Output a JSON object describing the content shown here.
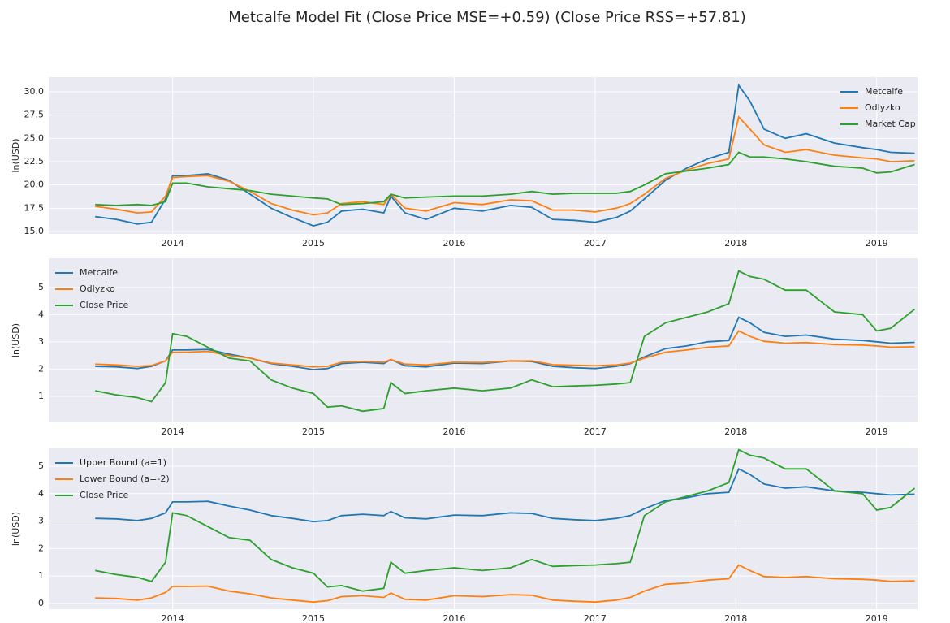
{
  "title": "Metcalfe Model Fit (Close Price MSE=+0.59) (Close Price RSS=+57.81)",
  "chart_data": [
    {
      "type": "line",
      "ylabel": "ln(USD)",
      "grid": true,
      "legend": "upper right",
      "xlim": [
        2013.12,
        2019.29
      ],
      "xticks": [
        2014,
        2015,
        2016,
        2017,
        2018,
        2019
      ],
      "ylim": [
        14.74,
        31.57
      ],
      "yticks": [
        {
          "value": 15,
          "label": "15.0"
        },
        17.5,
        {
          "value": 20,
          "label": "20.0"
        },
        22.5,
        {
          "value": 25,
          "label": "25.0"
        },
        27.5,
        {
          "value": 30,
          "label": "30.0"
        }
      ],
      "x": [
        2013.45,
        2013.6,
        2013.75,
        2013.85,
        2013.95,
        2014.0,
        2014.1,
        2014.25,
        2014.4,
        2014.55,
        2014.7,
        2014.85,
        2015.0,
        2015.1,
        2015.2,
        2015.35,
        2015.5,
        2015.55,
        2015.65,
        2015.8,
        2016.0,
        2016.2,
        2016.4,
        2016.55,
        2016.7,
        2016.85,
        2017.0,
        2017.15,
        2017.25,
        2017.35,
        2017.5,
        2017.65,
        2017.8,
        2017.95,
        2018.02,
        2018.1,
        2018.2,
        2018.35,
        2018.5,
        2018.7,
        2018.9,
        2019.0,
        2019.1,
        2019.27
      ],
      "series": [
        {
          "name": "Metcalfe",
          "color": "#1f77b4",
          "values": [
            16.6,
            16.3,
            15.8,
            16.0,
            18.5,
            21.0,
            21.0,
            21.2,
            20.5,
            19.0,
            17.5,
            16.5,
            15.6,
            16.0,
            17.2,
            17.4,
            17.0,
            18.8,
            17.0,
            16.3,
            17.5,
            17.2,
            17.8,
            17.6,
            16.3,
            16.2,
            16.0,
            16.5,
            17.2,
            18.5,
            20.5,
            21.8,
            22.8,
            23.5,
            30.7,
            29.0,
            26.0,
            25.0,
            25.5,
            24.5,
            24.0,
            23.8,
            23.5,
            23.4
          ]
        },
        {
          "name": "Odlyzko",
          "color": "#ff7f0e",
          "values": [
            17.7,
            17.4,
            17.0,
            17.1,
            18.8,
            20.8,
            20.9,
            21.0,
            20.4,
            19.3,
            18.0,
            17.3,
            16.8,
            17.0,
            18.0,
            18.2,
            17.9,
            19.0,
            17.5,
            17.2,
            18.1,
            17.9,
            18.4,
            18.3,
            17.3,
            17.3,
            17.1,
            17.5,
            18.0,
            19.0,
            20.7,
            21.6,
            22.3,
            22.8,
            27.3,
            26.0,
            24.3,
            23.5,
            23.8,
            23.2,
            22.9,
            22.8,
            22.5,
            22.6
          ]
        },
        {
          "name": "Market Cap",
          "color": "#2ca02c",
          "values": [
            17.9,
            17.8,
            17.9,
            17.8,
            18.2,
            20.2,
            20.2,
            19.8,
            19.6,
            19.4,
            19.0,
            18.8,
            18.6,
            18.5,
            17.9,
            18.0,
            18.2,
            19.0,
            18.6,
            18.7,
            18.8,
            18.8,
            19.0,
            19.3,
            19.0,
            19.1,
            19.1,
            19.1,
            19.3,
            20.0,
            21.2,
            21.5,
            21.8,
            22.2,
            23.5,
            23.0,
            23.0,
            22.8,
            22.5,
            22.0,
            21.8,
            21.3,
            21.4,
            22.2
          ]
        }
      ]
    },
    {
      "type": "line",
      "ylabel": "ln(USD)",
      "grid": true,
      "legend": "upper left",
      "xlim": [
        2013.12,
        2019.29
      ],
      "xticks": [
        2014,
        2015,
        2016,
        2017,
        2018,
        2019
      ],
      "ylim": [
        0.04,
        6.07
      ],
      "yticks": [
        1,
        2,
        3,
        4,
        5
      ],
      "x": [
        2013.45,
        2013.6,
        2013.75,
        2013.85,
        2013.95,
        2014.0,
        2014.1,
        2014.25,
        2014.4,
        2014.55,
        2014.7,
        2014.85,
        2015.0,
        2015.1,
        2015.2,
        2015.35,
        2015.5,
        2015.55,
        2015.65,
        2015.8,
        2016.0,
        2016.2,
        2016.4,
        2016.55,
        2016.7,
        2016.85,
        2017.0,
        2017.15,
        2017.25,
        2017.35,
        2017.5,
        2017.65,
        2017.8,
        2017.95,
        2018.02,
        2018.1,
        2018.2,
        2018.35,
        2018.5,
        2018.7,
        2018.9,
        2019.0,
        2019.1,
        2019.27
      ],
      "series": [
        {
          "name": "Metcalfe",
          "color": "#1f77b4",
          "values": [
            2.1,
            2.08,
            2.02,
            2.1,
            2.3,
            2.7,
            2.7,
            2.72,
            2.55,
            2.4,
            2.2,
            2.1,
            1.98,
            2.02,
            2.2,
            2.25,
            2.2,
            2.35,
            2.12,
            2.08,
            2.22,
            2.2,
            2.3,
            2.28,
            2.1,
            2.05,
            2.02,
            2.1,
            2.2,
            2.45,
            2.75,
            2.85,
            3.0,
            3.05,
            3.9,
            3.7,
            3.35,
            3.2,
            3.25,
            3.1,
            3.05,
            3.0,
            2.95,
            2.98
          ]
        },
        {
          "name": "Odlyzko",
          "color": "#ff7f0e",
          "values": [
            2.18,
            2.15,
            2.1,
            2.13,
            2.3,
            2.62,
            2.62,
            2.65,
            2.5,
            2.4,
            2.22,
            2.15,
            2.08,
            2.1,
            2.25,
            2.28,
            2.25,
            2.35,
            2.18,
            2.15,
            2.25,
            2.24,
            2.3,
            2.3,
            2.16,
            2.14,
            2.12,
            2.15,
            2.22,
            2.4,
            2.62,
            2.7,
            2.8,
            2.85,
            3.4,
            3.2,
            3.02,
            2.95,
            2.97,
            2.9,
            2.88,
            2.85,
            2.8,
            2.82
          ]
        },
        {
          "name": "Close Price",
          "color": "#2ca02c",
          "values": [
            1.2,
            1.05,
            0.95,
            0.8,
            1.5,
            3.3,
            3.2,
            2.8,
            2.4,
            2.3,
            1.6,
            1.3,
            1.1,
            0.6,
            0.65,
            0.45,
            0.55,
            1.5,
            1.1,
            1.2,
            1.3,
            1.2,
            1.3,
            1.6,
            1.35,
            1.38,
            1.4,
            1.45,
            1.5,
            3.2,
            3.7,
            3.9,
            4.1,
            4.4,
            5.6,
            5.4,
            5.3,
            4.9,
            4.9,
            4.1,
            4.0,
            3.4,
            3.5,
            4.2
          ]
        }
      ]
    },
    {
      "type": "line",
      "ylabel": "ln(USD)",
      "grid": true,
      "legend": "upper left",
      "xlim": [
        2013.12,
        2019.29
      ],
      "xticks": [
        2014,
        2015,
        2016,
        2017,
        2018,
        2019
      ],
      "ylim": [
        -0.21,
        5.65
      ],
      "yticks": [
        0,
        1,
        2,
        3,
        4,
        5
      ],
      "x": [
        2013.45,
        2013.6,
        2013.75,
        2013.85,
        2013.95,
        2014.0,
        2014.1,
        2014.25,
        2014.4,
        2014.55,
        2014.7,
        2014.85,
        2015.0,
        2015.1,
        2015.2,
        2015.35,
        2015.5,
        2015.55,
        2015.65,
        2015.8,
        2016.0,
        2016.2,
        2016.4,
        2016.55,
        2016.7,
        2016.85,
        2017.0,
        2017.15,
        2017.25,
        2017.35,
        2017.5,
        2017.65,
        2017.8,
        2017.95,
        2018.02,
        2018.1,
        2018.2,
        2018.35,
        2018.5,
        2018.7,
        2018.9,
        2019.0,
        2019.1,
        2019.27
      ],
      "series": [
        {
          "name": "Upper Bound (a=1)",
          "color": "#1f77b4",
          "values": [
            3.1,
            3.08,
            3.02,
            3.1,
            3.3,
            3.7,
            3.7,
            3.72,
            3.55,
            3.4,
            3.2,
            3.1,
            2.98,
            3.02,
            3.2,
            3.25,
            3.2,
            3.35,
            3.12,
            3.08,
            3.22,
            3.2,
            3.3,
            3.28,
            3.1,
            3.05,
            3.02,
            3.1,
            3.2,
            3.45,
            3.75,
            3.85,
            4.0,
            4.05,
            4.9,
            4.7,
            4.35,
            4.2,
            4.25,
            4.1,
            4.05,
            4.0,
            3.95,
            3.98
          ]
        },
        {
          "name": "Lower Bound (a=-2)",
          "color": "#ff7f0e",
          "values": [
            0.2,
            0.18,
            0.12,
            0.2,
            0.4,
            0.62,
            0.62,
            0.63,
            0.45,
            0.35,
            0.2,
            0.12,
            0.05,
            0.1,
            0.25,
            0.28,
            0.22,
            0.38,
            0.15,
            0.12,
            0.28,
            0.25,
            0.32,
            0.3,
            0.12,
            0.08,
            0.05,
            0.12,
            0.22,
            0.45,
            0.7,
            0.75,
            0.85,
            0.9,
            1.4,
            1.2,
            0.98,
            0.95,
            0.98,
            0.9,
            0.88,
            0.85,
            0.8,
            0.82
          ]
        },
        {
          "name": "Close Price",
          "color": "#2ca02c",
          "values": [
            1.2,
            1.05,
            0.95,
            0.8,
            1.5,
            3.3,
            3.2,
            2.8,
            2.4,
            2.3,
            1.6,
            1.3,
            1.1,
            0.6,
            0.65,
            0.45,
            0.55,
            1.5,
            1.1,
            1.2,
            1.3,
            1.2,
            1.3,
            1.6,
            1.35,
            1.38,
            1.4,
            1.45,
            1.5,
            3.2,
            3.7,
            3.9,
            4.1,
            4.4,
            5.6,
            5.4,
            5.3,
            4.9,
            4.9,
            4.1,
            4.0,
            3.4,
            3.5,
            4.2
          ]
        }
      ]
    }
  ]
}
